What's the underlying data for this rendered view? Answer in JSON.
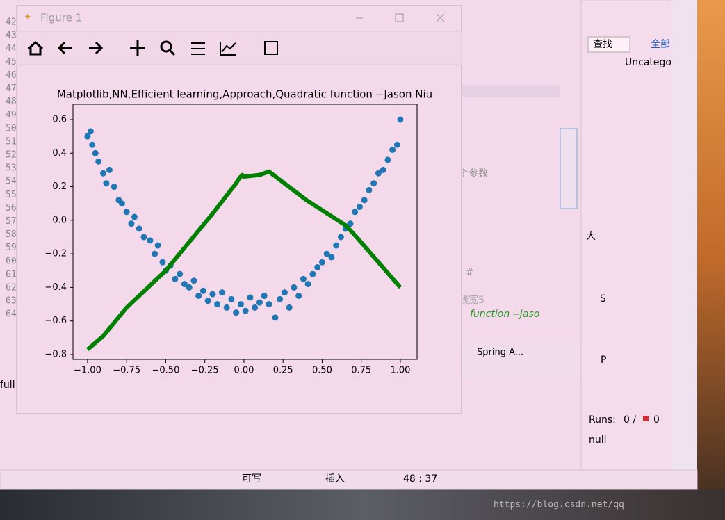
{
  "window": {
    "title": "Figure 1"
  },
  "editor": {
    "line_numbers": [
      "42",
      "43",
      "44",
      "45",
      "46",
      "47",
      "48",
      "49",
      "50",
      "51",
      "52",
      "53",
      "54",
      "55",
      "56",
      "57",
      "58",
      "59",
      "60",
      "61",
      "62",
      "63",
      "64"
    ],
    "fragments": [
      "个参数",
      ") #",
      "线宽5",
      "function --Jaso"
    ],
    "left_text": "full"
  },
  "tabs": {
    "spring": "Spring A..."
  },
  "right_panel": {
    "search": "查找",
    "all": "全部",
    "folder": "Uncatego",
    "outline": "大",
    "s_tab": "S",
    "p_tab": "P",
    "runs_label": "Runs:",
    "runs_value": "0 /",
    "errors_value": "0",
    "null_text": "null"
  },
  "status_bar": {
    "writable": "可写",
    "insert": "插入",
    "position": "48 : 37"
  },
  "watermark": "https://blog.csdn.net/qq",
  "chart_data": {
    "type": "scatter",
    "title": "Matplotlib,NN,Efficient learning,Approach,Quadratic function --Jason Niu",
    "xlim": [
      -1.093,
      1.107
    ],
    "ylim": [
      -0.829,
      0.691
    ],
    "xticks": [
      {
        "value": -1,
        "label": "−1.00"
      },
      {
        "value": -0.75,
        "label": "−0.75"
      },
      {
        "value": -0.5,
        "label": "−0.50"
      },
      {
        "value": -0.25,
        "label": "−0.25"
      },
      {
        "value": 0,
        "label": "0.00"
      },
      0.25,
      {
        "value": 0.5,
        "label": "0.50"
      },
      0.75,
      {
        "value": 1,
        "label": "1.00"
      }
    ],
    "yticks": [
      {
        "value": -0.8,
        "label": "−0.8"
      },
      {
        "value": -0.6,
        "label": "−0.6"
      },
      {
        "value": -0.4,
        "label": "−0.4"
      },
      {
        "value": -0.2,
        "label": "−0.2"
      },
      {
        "value": 0,
        "label": "0.0"
      },
      0.2,
      0.4,
      0.6
    ],
    "series": [
      {
        "type": "scatter",
        "color": "#1f77b4",
        "x": [
          -1,
          -0.98,
          -0.97,
          -0.95,
          -0.93,
          -0.9,
          -0.88,
          -0.86,
          -0.83,
          -0.8,
          -0.78,
          -0.75,
          -0.72,
          -0.7,
          -0.67,
          -0.64,
          -0.6,
          -0.57,
          -0.55,
          -0.52,
          -0.5,
          -0.47,
          -0.44,
          -0.41,
          -0.38,
          -0.35,
          -0.32,
          -0.29,
          -0.26,
          -0.23,
          -0.2,
          -0.17,
          -0.14,
          -0.11,
          -0.08,
          -0.05,
          -0.02,
          0.01,
          0.04,
          0.07,
          0.1,
          0.13,
          0.16,
          0.2,
          0.23,
          0.26,
          0.29,
          0.32,
          0.35,
          0.38,
          0.41,
          0.44,
          0.47,
          0.5,
          0.53,
          0.56,
          0.59,
          0.62,
          0.65,
          0.68,
          0.71,
          0.74,
          0.77,
          0.8,
          0.83,
          0.86,
          0.89,
          0.92,
          0.95,
          0.98,
          1.0
        ],
        "values": [
          0.5,
          0.53,
          0.45,
          0.4,
          0.35,
          0.28,
          0.22,
          0.3,
          0.2,
          0.12,
          0.1,
          0.05,
          -0.02,
          0.02,
          -0.05,
          -0.1,
          -0.12,
          -0.2,
          -0.15,
          -0.25,
          -0.3,
          -0.27,
          -0.35,
          -0.32,
          -0.38,
          -0.4,
          -0.36,
          -0.45,
          -0.42,
          -0.48,
          -0.44,
          -0.5,
          -0.43,
          -0.52,
          -0.47,
          -0.55,
          -0.5,
          -0.54,
          -0.46,
          -0.52,
          -0.49,
          -0.45,
          -0.5,
          -0.58,
          -0.47,
          -0.43,
          -0.52,
          -0.4,
          -0.45,
          -0.35,
          -0.38,
          -0.32,
          -0.28,
          -0.25,
          -0.2,
          -0.22,
          -0.15,
          -0.1,
          -0.05,
          -0.02,
          0.05,
          0.08,
          0.12,
          0.18,
          0.22,
          0.28,
          0.3,
          0.36,
          0.42,
          0.45,
          0.6
        ]
      },
      {
        "type": "line",
        "color": "#008000",
        "x": [
          -1,
          -0.9,
          -0.75,
          -0.5,
          -0.2,
          -0.05,
          -0.03,
          -0.01,
          0,
          0.1,
          0.16,
          0.4,
          0.65,
          0.72,
          1.0
        ],
        "values": [
          -0.77,
          -0.69,
          -0.52,
          -0.3,
          0.04,
          0.22,
          0.25,
          0.27,
          0.26,
          0.27,
          0.29,
          0.12,
          -0.03,
          -0.1,
          -0.4
        ]
      }
    ]
  }
}
